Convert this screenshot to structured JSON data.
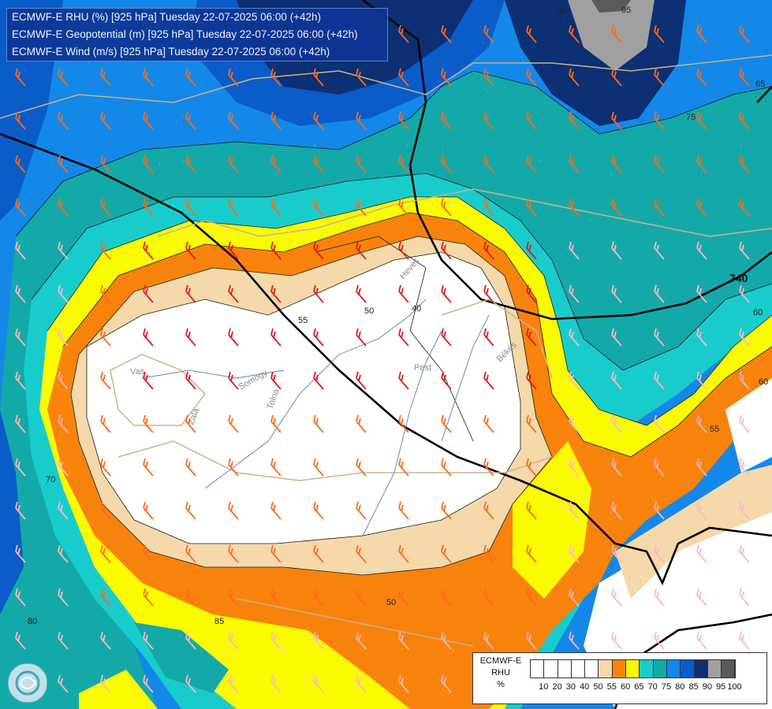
{
  "header": {
    "line1": "ECMWF-E RHU (%) [925 hPa] Tuesday 22-07-2025 06:00 (+42h)",
    "line2": "ECMWF-E Geopotential (m) [925 hPa] Tuesday 22-07-2025 06:00 (+42h)",
    "line3": "ECMWF-E Wind (m/s) [925 hPa] Tuesday 22-07-2025 06:00 (+42h)"
  },
  "legend": {
    "title_line1": "ECMWF-E",
    "title_line2": "RHU",
    "title_line3": "%",
    "levels": [
      "10",
      "20",
      "30",
      "40",
      "50",
      "55",
      "60",
      "65",
      "70",
      "75",
      "80",
      "85",
      "90",
      "95",
      "100"
    ],
    "colors": [
      "#ffffff",
      "#ffffff",
      "#ffffff",
      "#ffffff",
      "#ffffff",
      "#f5d9aa",
      "#f7830d",
      "#fafa00",
      "#19cccc",
      "#14a9a9",
      "#1488e8",
      "#0a5cc8",
      "#0d2f73",
      "#a0a0a0",
      "#5a5a5a"
    ]
  },
  "map": {
    "contour_labels": {
      "a": "40",
      "b": "50",
      "c": "55",
      "d": "55",
      "e": "60",
      "f": "70",
      "g": "75",
      "h": "80",
      "i": "85",
      "j": "60",
      "k": "65",
      "l": "50",
      "m": "95",
      "n": "90"
    },
    "geopotential_label": "740",
    "rivers": {
      "r1": "Vas",
      "r2": "Zala",
      "r3": "Somogy",
      "r4": "Tolna",
      "r5": "Pest",
      "r6": "Heves",
      "r7": "Békés"
    }
  },
  "wind_barb_colors": {
    "weak": "#ffb6c1",
    "moderate": "#ff6a1a",
    "strong": "#e01c1c",
    "calm": "#ffffff"
  }
}
